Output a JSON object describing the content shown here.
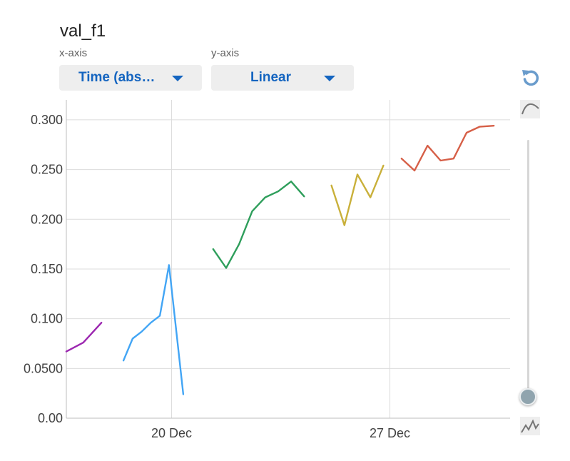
{
  "title": "val_f1",
  "controls": {
    "x_axis_label": "x-axis",
    "x_axis_value": "Time (abs…",
    "y_axis_label": "y-axis",
    "y_axis_value": "Linear"
  },
  "toolbar": {
    "reset_icon": "reset-icon",
    "smoothed_icon": "smooth-curve-icon",
    "raw_icon": "raw-curve-icon",
    "smoothing_slider_position": 0
  },
  "chart_data": {
    "type": "line",
    "title": "val_f1",
    "xlabel": "",
    "ylabel": "",
    "x_type": "time",
    "xlim": [
      "2023-12-16T15:00",
      "2023-12-30T20:30"
    ],
    "ylim": [
      0,
      0.32
    ],
    "x_tick_labels": [
      {
        "label": "20 Dec",
        "x": "2023-12-20T00:00"
      },
      {
        "label": "27 Dec",
        "x": "2023-12-27T00:00"
      }
    ],
    "y_ticks": [
      0,
      0.05,
      0.1,
      0.15,
      0.2,
      0.25,
      0.3
    ],
    "y_tick_labels": [
      "0.00",
      "0.0500",
      "0.100",
      "0.150",
      "0.200",
      "0.250",
      "0.300"
    ],
    "grid": true,
    "series": [
      {
        "color": "#9c27b0",
        "points": [
          [
            "2023-12-16T15:00",
            0.067
          ],
          [
            "2023-12-17T04:00",
            0.076
          ],
          [
            "2023-12-17T18:00",
            0.096
          ]
        ]
      },
      {
        "color": "#42a5f5",
        "points": [
          [
            "2023-12-18T11:00",
            0.058
          ],
          [
            "2023-12-18T18:00",
            0.08
          ],
          [
            "2023-12-19T01:00",
            0.087
          ],
          [
            "2023-12-19T08:00",
            0.096
          ],
          [
            "2023-12-19T15:00",
            0.103
          ],
          [
            "2023-12-19T22:00",
            0.154
          ],
          [
            "2023-12-20T09:00",
            0.024
          ]
        ]
      },
      {
        "color": "#2e9e5b",
        "points": [
          [
            "2023-12-21T08:00",
            0.17
          ],
          [
            "2023-12-21T18:00",
            0.151
          ],
          [
            "2023-12-22T04:00",
            0.175
          ],
          [
            "2023-12-22T14:00",
            0.208
          ],
          [
            "2023-12-23T00:00",
            0.222
          ],
          [
            "2023-12-23T10:00",
            0.228
          ],
          [
            "2023-12-23T20:00",
            0.238
          ],
          [
            "2023-12-24T06:00",
            0.223
          ]
        ]
      },
      {
        "color": "#c9b03a",
        "points": [
          [
            "2023-12-25T03:00",
            0.234
          ],
          [
            "2023-12-25T13:00",
            0.194
          ],
          [
            "2023-12-25T23:00",
            0.245
          ],
          [
            "2023-12-26T09:00",
            0.222
          ],
          [
            "2023-12-26T19:00",
            0.254
          ]
        ]
      },
      {
        "color": "#d65f47",
        "points": [
          [
            "2023-12-27T09:00",
            0.261
          ],
          [
            "2023-12-27T19:00",
            0.249
          ],
          [
            "2023-12-28T05:00",
            0.274
          ],
          [
            "2023-12-28T15:00",
            0.259
          ],
          [
            "2023-12-29T01:00",
            0.261
          ],
          [
            "2023-12-29T11:00",
            0.287
          ],
          [
            "2023-12-29T21:00",
            0.293
          ],
          [
            "2023-12-30T08:00",
            0.294
          ]
        ]
      }
    ]
  }
}
